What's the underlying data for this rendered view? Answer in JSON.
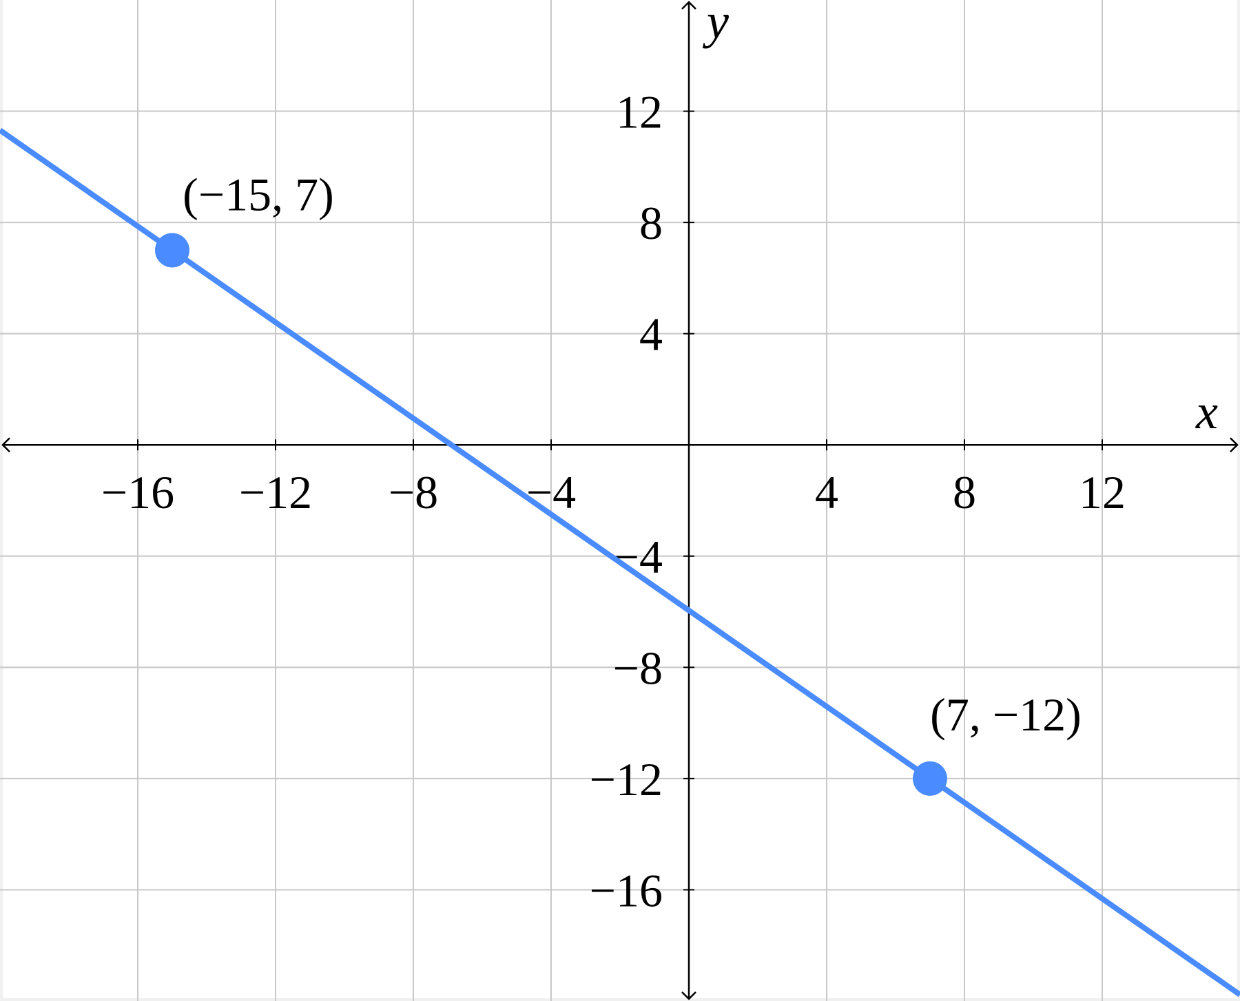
{
  "chart_data": {
    "type": "line",
    "xlabel": "x",
    "ylabel": "y",
    "xlim": [
      -20,
      16
    ],
    "ylim": [
      -20,
      16
    ],
    "grid": true,
    "grid_step": 4,
    "x_ticks": [
      -16,
      -12,
      -8,
      -4,
      4,
      8,
      12
    ],
    "y_ticks": [
      12,
      8,
      4,
      -4,
      -8,
      -12,
      -16
    ],
    "x_tick_labels": [
      "−16",
      "−12",
      "−8",
      "−4",
      "4",
      "8",
      "12"
    ],
    "y_tick_labels": [
      "12",
      "8",
      "4",
      "−4",
      "−8",
      "−12",
      "−16"
    ],
    "line": {
      "through": [
        [
          -15,
          7
        ],
        [
          7,
          -12
        ]
      ],
      "color": "#4a8cff"
    },
    "points": [
      {
        "x": -15,
        "y": 7,
        "label": "(−15, 7)"
      },
      {
        "x": 7,
        "y": -12,
        "label": "(7, −12)"
      }
    ],
    "colors": {
      "line": "#4a8cff",
      "grid": "#c8c8c8",
      "axis": "#000000",
      "border": "#f0f0f0"
    }
  }
}
